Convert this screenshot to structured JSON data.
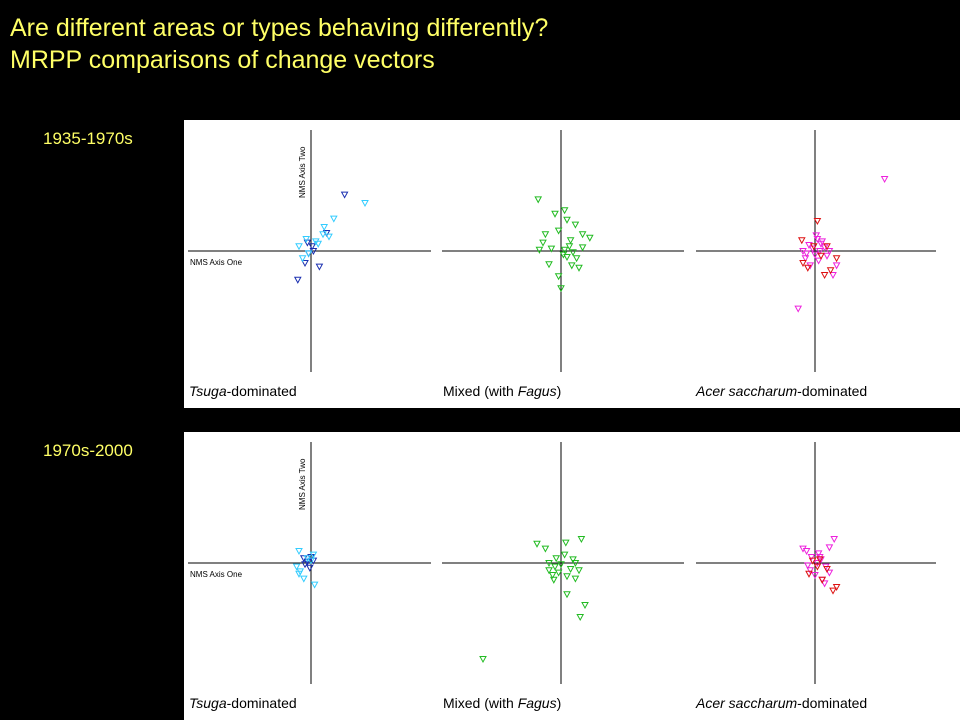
{
  "title": {
    "line1": "Are different areas or types behaving differently?",
    "line2": "MRPP comparisons of change vectors"
  },
  "colors": {
    "title_text": "#ffff66",
    "background": "#000000",
    "panel": "#ffffff",
    "tsuga_dark": "#1a2fb0",
    "tsuga_light": "#33ccff",
    "mixed": "#22bb22",
    "acer_magenta": "#ee22dd",
    "acer_red": "#dd1111"
  },
  "axis_labels": {
    "x": "NMS Axis One",
    "y": "NMS Axis Two"
  },
  "chart_data": [
    {
      "type": "scatter",
      "row_label": "1935-1970s",
      "xlim": [
        -1,
        1
      ],
      "ylim": [
        -1,
        1
      ],
      "subplots": [
        {
          "label_parts": [
            {
              "text": "Tsuga",
              "italic": true
            },
            {
              "text": "-dominated",
              "italic": false
            }
          ],
          "series": [
            {
              "color": "#1a2fb0",
              "x": [
                0.28,
                0.13,
                -0.11,
                0.02,
                -0.02,
                0.07,
                -0.03,
                -0.05,
                0.01
              ],
              "y": [
                0.47,
                0.15,
                -0.24,
                0.0,
                -0.02,
                -0.13,
                0.07,
                -0.1,
                0.04
              ]
            },
            {
              "color": "#33ccff",
              "x": [
                0.45,
                0.19,
                0.1,
                0.04,
                -0.07,
                -0.1,
                -0.04,
                0.06,
                -0.02,
                0.15,
                0.11
              ],
              "y": [
                0.4,
                0.27,
                0.14,
                0.08,
                -0.06,
                0.04,
                0.1,
                0.06,
                -0.02,
                0.12,
                0.2
              ]
            }
          ]
        },
        {
          "label_parts": [
            {
              "text": "Mixed (with ",
              "italic": false
            },
            {
              "text": "Fagus",
              "italic": true
            },
            {
              "text": ")",
              "italic": false
            }
          ],
          "series": [
            {
              "color": "#22bb22",
              "x": [
                -0.19,
                -0.05,
                0.03,
                0.05,
                -0.13,
                -0.02,
                0.12,
                0.18,
                0.24,
                -0.15,
                0.07,
                0.1,
                -0.08,
                0.02,
                -0.1,
                0.15,
                0.05,
                -0.02,
                0.0,
                0.13,
                0.08,
                0.03,
                -0.18,
                0.09,
                0.18
              ],
              "y": [
                0.43,
                0.31,
                0.34,
                0.26,
                0.14,
                0.17,
                0.22,
                0.14,
                0.11,
                0.07,
                0.04,
                -0.01,
                0.02,
                -0.03,
                -0.11,
                -0.14,
                -0.05,
                -0.21,
                -0.31,
                -0.06,
                0.09,
                0.01,
                0.01,
                -0.12,
                0.03
              ]
            }
          ]
        },
        {
          "label_parts": [
            {
              "text": "Acer saccharum",
              "italic": true
            },
            {
              "text": "-dominated",
              "italic": false
            }
          ],
          "series": [
            {
              "color": "#ee22dd",
              "x": [
                0.58,
                -0.14,
                0.02,
                0.05,
                0.08,
                -0.02,
                -0.07,
                0.1,
                0.15,
                0.18,
                -0.1,
                0.03,
                -0.04,
                0.06,
                -0.05,
                0.01,
                0.0,
                0.04,
                -0.08,
                0.12
              ],
              "y": [
                0.6,
                -0.48,
                0.1,
                0.06,
                0.03,
                0.02,
                -0.02,
                -0.04,
                -0.2,
                -0.12,
                0.0,
                -0.08,
                -0.12,
                0.08,
                0.05,
                0.13,
                -0.03,
                0.0,
                -0.06,
                0.0
              ]
            },
            {
              "color": "#dd1111",
              "x": [
                0.02,
                -0.11,
                0.18,
                0.13,
                0.08,
                -0.06,
                0.1,
                -0.1,
                0.05,
                -0.01
              ],
              "y": [
                0.25,
                0.09,
                -0.06,
                -0.16,
                -0.2,
                -0.14,
                0.04,
                -0.1,
                -0.04,
                0.04
              ]
            }
          ]
        }
      ]
    },
    {
      "type": "scatter",
      "row_label": "1970s-2000",
      "xlim": [
        -1,
        1
      ],
      "ylim": [
        -1,
        1
      ],
      "subplots": [
        {
          "label_parts": [
            {
              "text": "Tsuga",
              "italic": true
            },
            {
              "text": "-dominated",
              "italic": false
            }
          ],
          "series": [
            {
              "color": "#1a2fb0",
              "x": [
                -0.06,
                -0.03,
                -0.01,
                0.02,
                -0.05,
                0.0
              ],
              "y": [
                0.04,
                0.01,
                -0.04,
                0.02,
                -0.01,
                0.05
              ]
            },
            {
              "color": "#33ccff",
              "x": [
                -0.1,
                0.0,
                -0.06,
                0.03,
                -0.12,
                -0.09,
                -0.03,
                0.02,
                -0.1
              ],
              "y": [
                0.1,
                0.02,
                -0.13,
                -0.18,
                -0.03,
                -0.07,
                0.04,
                0.07,
                -0.09
              ]
            }
          ]
        },
        {
          "label_parts": [
            {
              "text": "Mixed (with ",
              "italic": false
            },
            {
              "text": "Fagus",
              "italic": true
            },
            {
              "text": ")",
              "italic": false
            }
          ],
          "series": [
            {
              "color": "#22bb22",
              "x": [
                -0.65,
                -0.2,
                -0.13,
                0.04,
                0.17,
                0.05,
                0.16,
                -0.1,
                -0.02,
                0.08,
                0.12,
                -0.07,
                -0.05,
                0.1,
                -0.1,
                0.0,
                0.05,
                0.12,
                0.2,
                0.15,
                -0.06,
                -0.04,
                0.03
              ],
              "y": [
                -0.8,
                0.16,
                0.12,
                0.17,
                0.2,
                -0.26,
                -0.45,
                0.0,
                -0.08,
                -0.05,
                -0.13,
                -0.1,
                -0.03,
                0.03,
                -0.06,
                -0.01,
                -0.11,
                0.0,
                -0.35,
                -0.06,
                -0.14,
                0.04,
                0.07
              ]
            }
          ]
        },
        {
          "label_parts": [
            {
              "text": "Acer saccharum",
              "italic": true
            },
            {
              "text": "-dominated",
              "italic": false
            }
          ],
          "series": [
            {
              "color": "#ee22dd",
              "x": [
                -0.1,
                -0.07,
                0.12,
                0.16,
                0.04,
                0.02,
                -0.04,
                0.06,
                0.09,
                -0.03,
                0.0,
                0.05,
                0.08,
                -0.06,
                0.12,
                0.03
              ],
              "y": [
                0.12,
                0.1,
                0.13,
                0.2,
                0.05,
                0.0,
                -0.06,
                -0.14,
                -0.03,
                0.05,
                -0.1,
                0.03,
                -0.17,
                -0.02,
                -0.08,
                0.08
              ]
            },
            {
              "color": "#dd1111",
              "x": [
                0.18,
                0.15,
                0.02,
                -0.02,
                0.06,
                -0.05,
                0.1,
                0.04
              ],
              "y": [
                -0.2,
                -0.23,
                -0.03,
                0.02,
                -0.14,
                -0.09,
                -0.05,
                0.03
              ]
            }
          ]
        }
      ]
    }
  ]
}
